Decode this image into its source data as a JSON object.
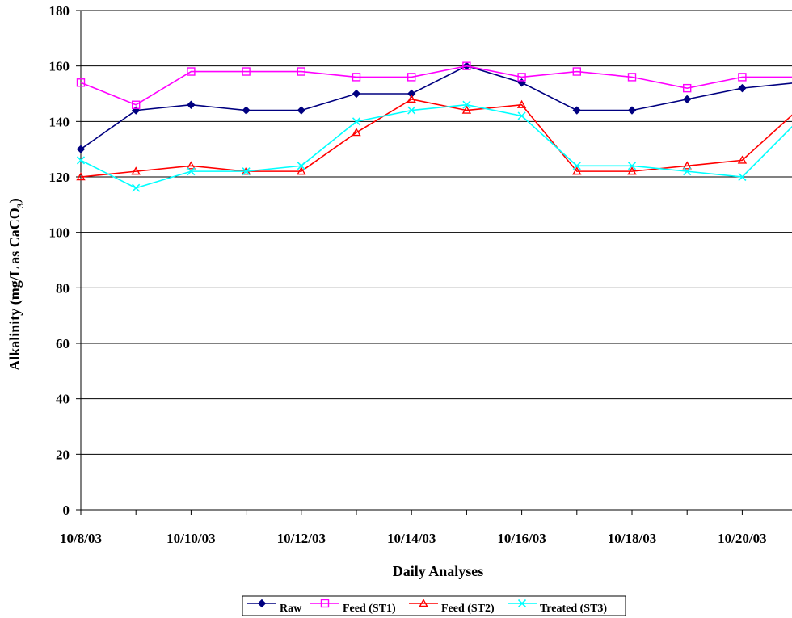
{
  "chart_data": {
    "type": "line",
    "title": "",
    "xlabel": "Daily Analyses",
    "ylabel_main": "Alkalinity (mg/L as CaCO",
    "ylabel_sub": "3",
    "ylabel_close": ")",
    "ylim": [
      0,
      180
    ],
    "y_ticks": [
      "0",
      "20",
      "40",
      "60",
      "80",
      "100",
      "120",
      "140",
      "160",
      "180"
    ],
    "x_dates": [
      "10/8/03",
      "10/9/03",
      "10/10/03",
      "10/11/03",
      "10/12/03",
      "10/13/03",
      "10/14/03",
      "10/15/03",
      "10/16/03",
      "10/17/03",
      "10/18/03",
      "10/19/03",
      "10/20/03",
      "10/21/03"
    ],
    "x_tick_labels": [
      "10/8/03",
      "10/10/03",
      "10/12/03",
      "10/14/03",
      "10/16/03",
      "10/18/03",
      "10/20/03"
    ],
    "grid": true,
    "legend_position": "bottom",
    "series": [
      {
        "name": "Raw",
        "color": "#000080",
        "marker": "diamond",
        "values": [
          130,
          144,
          146,
          144,
          144,
          150,
          150,
          160,
          154,
          144,
          144,
          148,
          152,
          154
        ]
      },
      {
        "name": "Feed (ST1)",
        "color": "#ff00ff",
        "marker": "square",
        "values": [
          154,
          146,
          158,
          158,
          158,
          156,
          156,
          160,
          156,
          158,
          156,
          152,
          156,
          156
        ]
      },
      {
        "name": "Feed (ST2)",
        "color": "#ff0000",
        "marker": "triangle",
        "values": [
          120,
          122,
          124,
          122,
          122,
          136,
          148,
          144,
          146,
          122,
          122,
          124,
          126,
          144
        ]
      },
      {
        "name": "Treated (ST3)",
        "color": "#00ffff",
        "marker": "x",
        "values": [
          126,
          116,
          122,
          122,
          124,
          140,
          144,
          146,
          142,
          124,
          124,
          122,
          120,
          140
        ]
      }
    ]
  }
}
